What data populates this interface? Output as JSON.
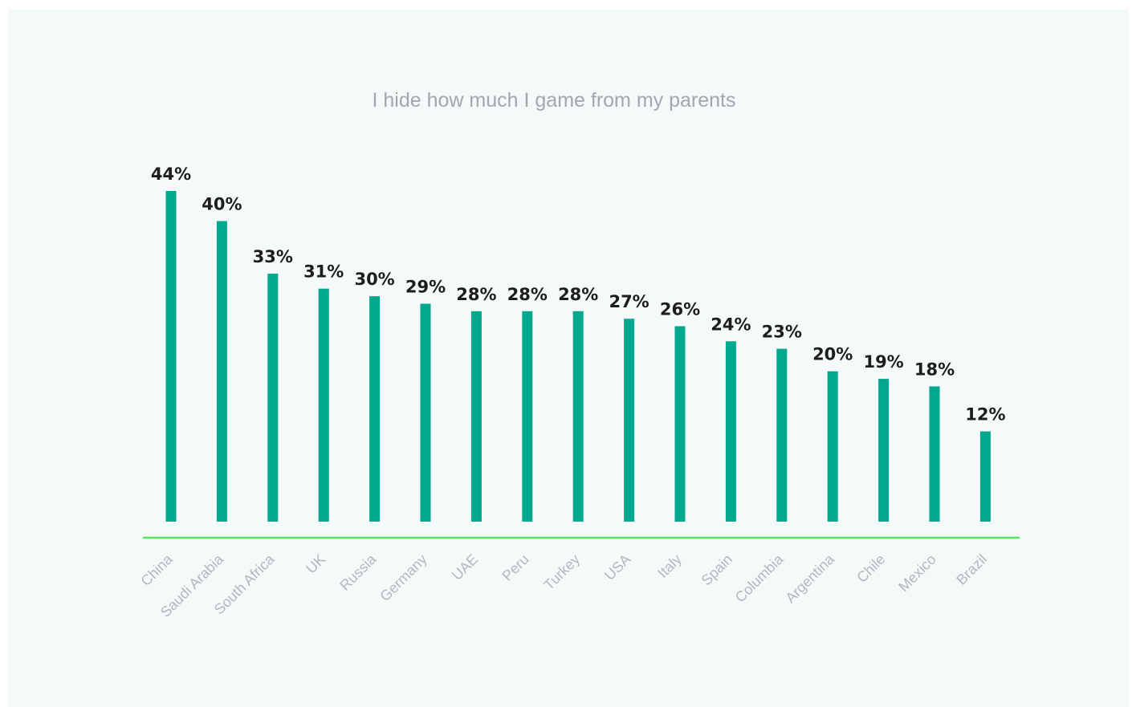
{
  "chart_data": {
    "type": "bar",
    "title": "I hide how much I game from my parents",
    "categories": [
      "China",
      "Saudi Arabia",
      "South Africa",
      "UK",
      "Russia",
      "Germany",
      "UAE",
      "Peru",
      "Turkey",
      "USA",
      "Italy",
      "Spain",
      "Columbia",
      "Argentina",
      "Chile",
      "Mexico",
      "Brazil"
    ],
    "values": [
      44,
      40,
      33,
      31,
      30,
      29,
      28,
      28,
      28,
      27,
      26,
      24,
      23,
      20,
      19,
      18,
      12
    ],
    "value_labels": [
      "44%",
      "40%",
      "33%",
      "31%",
      "30%",
      "29%",
      "28%",
      "28%",
      "28%",
      "27%",
      "26%",
      "24%",
      "23%",
      "20%",
      "19%",
      "18%",
      "12%"
    ],
    "xlabel": "",
    "ylabel": "",
    "ylim": [
      0,
      44
    ],
    "grid": false,
    "legend": "none",
    "colors": {
      "bar": "#00a88e",
      "axis": "#5ce35c",
      "title": "#a2a7ab",
      "value_label": "#1d1d1b",
      "category_label": "#b3b8bb",
      "background": "#f4f9f9"
    }
  }
}
